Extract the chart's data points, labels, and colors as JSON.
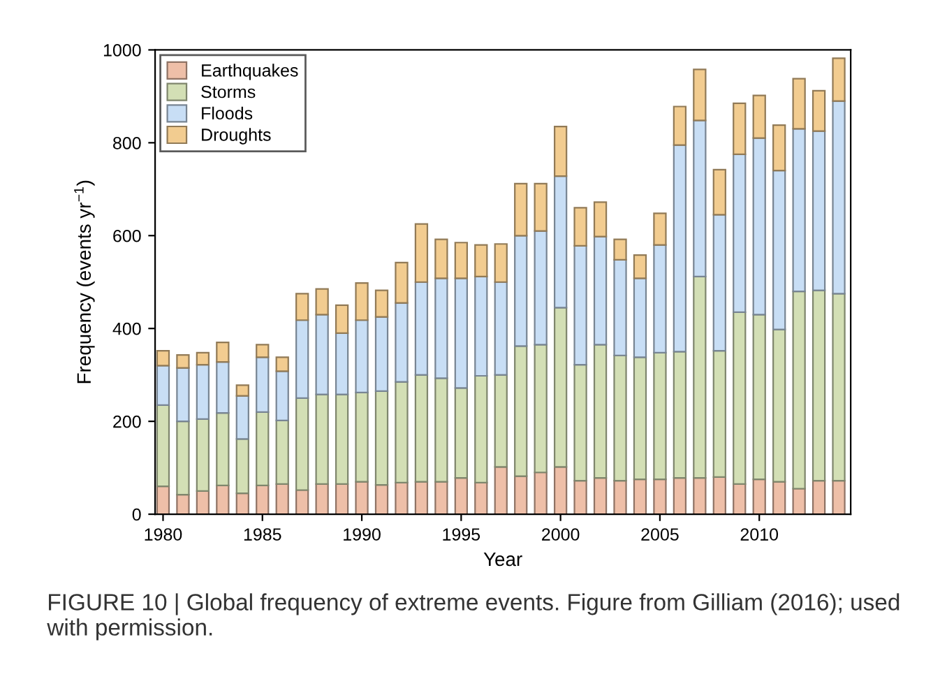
{
  "chart_data": {
    "type": "bar",
    "stacked": true,
    "xlabel": "Year",
    "ylabel": "Frequency (events yr$^{−1}$)",
    "x": [
      1980,
      1981,
      1982,
      1983,
      1984,
      1985,
      1986,
      1987,
      1988,
      1989,
      1990,
      1991,
      1992,
      1993,
      1994,
      1995,
      1996,
      1997,
      1998,
      1999,
      2000,
      2001,
      2002,
      2003,
      2004,
      2005,
      2006,
      2007,
      2008,
      2009,
      2010,
      2011,
      2012,
      2013,
      2014
    ],
    "series": [
      {
        "name": "Earthquakes",
        "color": "#eebfa8",
        "values": [
          60,
          42,
          50,
          62,
          45,
          62,
          65,
          52,
          65,
          65,
          70,
          63,
          68,
          70,
          70,
          78,
          68,
          102,
          82,
          90,
          102,
          72,
          78,
          72,
          75,
          75,
          78,
          78,
          80,
          65,
          75,
          70,
          55,
          72,
          72
        ]
      },
      {
        "name": "Storms",
        "color": "#d3dfb5",
        "values": [
          175,
          158,
          155,
          156,
          117,
          158,
          137,
          198,
          193,
          193,
          192,
          202,
          217,
          230,
          223,
          194,
          230,
          198,
          280,
          275,
          343,
          250,
          287,
          270,
          263,
          273,
          272,
          434,
          272,
          370,
          355,
          328,
          425,
          410,
          403
        ]
      },
      {
        "name": "Floods",
        "color": "#c8def5",
        "values": [
          85,
          115,
          117,
          110,
          93,
          118,
          106,
          168,
          172,
          132,
          156,
          160,
          170,
          200,
          215,
          236,
          214,
          200,
          238,
          245,
          283,
          256,
          233,
          206,
          170,
          232,
          445,
          336,
          293,
          340,
          380,
          342,
          350,
          343,
          415
        ]
      },
      {
        "name": "Droughts",
        "color": "#f2cc90",
        "values": [
          32,
          28,
          26,
          42,
          23,
          27,
          30,
          57,
          55,
          60,
          80,
          57,
          87,
          125,
          84,
          77,
          68,
          82,
          112,
          102,
          107,
          82,
          74,
          44,
          50,
          68,
          83,
          110,
          97,
          110,
          92,
          98,
          108,
          87,
          92
        ]
      }
    ],
    "xlim": [
      1979.6,
      2014.6
    ],
    "xticks": [
      1980,
      1985,
      1990,
      1995,
      2000,
      2005,
      2010
    ],
    "ylim": [
      0,
      1000
    ],
    "yticks": [
      0,
      200,
      400,
      600,
      800,
      1000
    ],
    "legend": "top left",
    "grid": false,
    "annotations": [
      "FIGURE 10 | Global frequency of extreme events. Figure from Gilliam (2016); used with permission."
    ]
  }
}
